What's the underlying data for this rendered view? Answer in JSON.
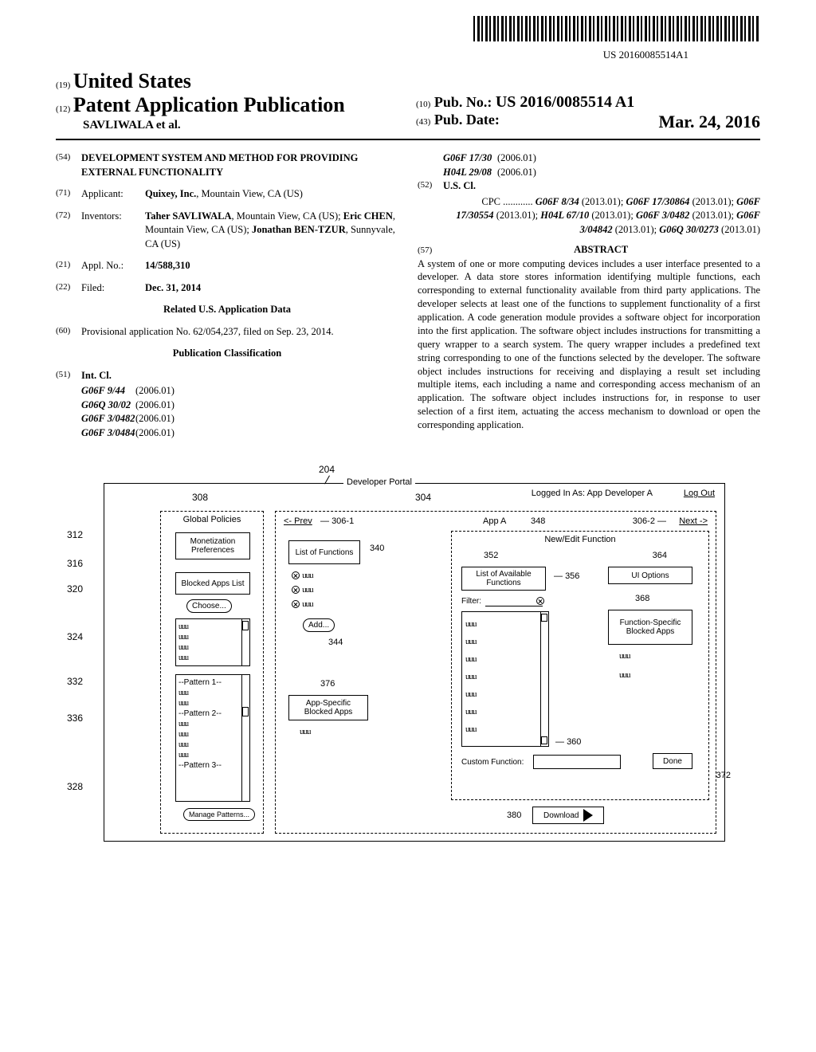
{
  "barcode_number": "US 20160085514A1",
  "header": {
    "country_num": "(19)",
    "country": "United States",
    "pub_type_num": "(12)",
    "pub_type": "Patent Application Publication",
    "authors": "SAVLIWALA et al.",
    "pub_no_num": "(10)",
    "pub_no_label": "Pub. No.:",
    "pub_no_val": "US 2016/0085514 A1",
    "pub_date_num": "(43)",
    "pub_date_label": "Pub. Date:",
    "pub_date_val": "Mar. 24, 2016"
  },
  "left_col": {
    "title_num": "(54)",
    "title": "DEVELOPMENT SYSTEM AND METHOD FOR PROVIDING EXTERNAL FUNCTIONALITY",
    "applicant_num": "(71)",
    "applicant_label": "Applicant:",
    "applicant_val": "Quixey, Inc., Mountain View, CA (US)",
    "inventors_num": "(72)",
    "inventors_label": "Inventors:",
    "inventors_val": "Taher SAVLIWALA, Mountain View, CA (US); Eric CHEN, Mountain View, CA (US); Jonathan BEN-TZUR, Sunnyvale, CA (US)",
    "appl_num": "(21)",
    "appl_label": "Appl. No.:",
    "appl_val": "14/588,310",
    "filed_num": "(22)",
    "filed_label": "Filed:",
    "filed_val": "Dec. 31, 2014",
    "related_heading": "Related U.S. Application Data",
    "provisional_num": "(60)",
    "provisional_text": "Provisional application No. 62/054,237, filed on Sep. 23, 2014.",
    "classification_heading": "Publication Classification",
    "intcl_num": "(51)",
    "intcl_label": "Int. Cl.",
    "intcl": [
      {
        "code": "G06F 9/44",
        "year": "(2006.01)"
      },
      {
        "code": "G06Q 30/02",
        "year": "(2006.01)"
      },
      {
        "code": "G06F 3/0482",
        "year": "(2006.01)"
      },
      {
        "code": "G06F 3/0484",
        "year": "(2006.01)"
      }
    ]
  },
  "right_col": {
    "intcl_cont": [
      {
        "code": "G06F 17/30",
        "year": "(2006.01)"
      },
      {
        "code": "H04L 29/08",
        "year": "(2006.01)"
      }
    ],
    "uscl_num": "(52)",
    "uscl_label": "U.S. Cl.",
    "cpc_label": "CPC",
    "cpc_text": "G06F 8/34 (2013.01); G06F 17/30864 (2013.01); G06F 17/30554 (2013.01); H04L 67/10 (2013.01); G06F 3/0482 (2013.01); G06F 3/04842 (2013.01); G06Q 30/0273 (2013.01)",
    "abstract_num": "(57)",
    "abstract_label": "ABSTRACT",
    "abstract_text": "A system of one or more computing devices includes a user interface presented to a developer. A data store stores information identifying multiple functions, each corresponding to external functionality available from third party applications. The developer selects at least one of the functions to supplement functionality of a first application. A code generation module provides a software object for incorporation into the first application. The software object includes instructions for transmitting a query wrapper to a search system. The query wrapper includes a predefined text string corresponding to one of the functions selected by the developer. The software object includes instructions for receiving and displaying a result set including multiple items, each including a name and corresponding access mechanism of an application. The software object includes instructions for, in response to user selection of a first item, actuating the access mechanism to download or open the corresponding application."
  },
  "figure": {
    "ref_204": "204",
    "portal_title": "Developer Portal",
    "logged_in": "Logged In As: App Developer A",
    "logout": "Log Out",
    "ref_308": "308",
    "ref_304": "304",
    "global_policies": "Global Policies",
    "prev": "<- Prev",
    "ref_306_1": "306-1",
    "app_a": "App A",
    "ref_348": "348",
    "ref_306_2": "306-2",
    "next": "Next ->",
    "ref_312": "312",
    "monetization": "Monetization Preferences",
    "ref_316": "316",
    "blocked_apps": "Blocked Apps List",
    "ref_320": "320",
    "choose": "Choose...",
    "ref_324": "324",
    "ref_332": "332",
    "pattern1": "--Pattern 1--",
    "pattern2": "--Pattern 2--",
    "ref_336": "336",
    "pattern3": "--Pattern 3--",
    "ref_328": "328",
    "manage_patterns": "Manage Patterns...",
    "ref_340": "340",
    "list_of_functions": "List of Functions",
    "ref_344": "344",
    "add": "Add...",
    "ref_376": "376",
    "app_specific_blocked": "App-Specific Blocked Apps",
    "new_edit_function": "New/Edit Function",
    "ref_352": "352",
    "list_available": "List of Available Functions",
    "ref_356": "356",
    "filter_label": "Filter:",
    "ref_360": "360",
    "custom_function": "Custom Function:",
    "ref_364": "364",
    "ui_options": "UI Options",
    "ref_368": "368",
    "function_specific": "Function-Specific Blocked Apps",
    "ref_372": "372",
    "done": "Done",
    "ref_380": "380",
    "download": "Download"
  }
}
